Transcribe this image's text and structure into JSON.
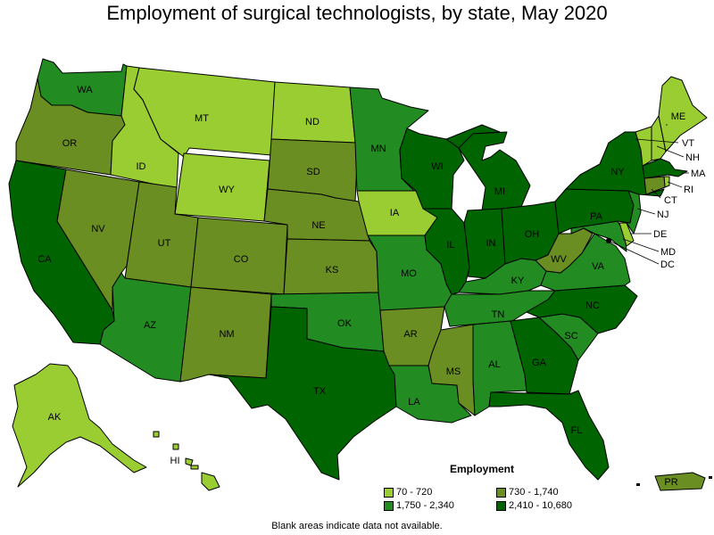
{
  "title": "Employment of surgical technologists, by state, May 2020",
  "legend": {
    "title": "Employment",
    "bins": [
      {
        "label": "70 - 720",
        "color": "#9acd32"
      },
      {
        "label": "730 - 1,740",
        "color": "#6b8e23"
      },
      {
        "label": "1,750 - 2,340",
        "color": "#228b22"
      },
      {
        "label": "2,410 - 10,680",
        "color": "#006400"
      }
    ]
  },
  "note": "Blank areas indicate data not available.",
  "states": {
    "WA": {
      "label": "WA",
      "bin": 2
    },
    "OR": {
      "label": "OR",
      "bin": 1
    },
    "CA": {
      "label": "CA",
      "bin": 3
    },
    "ID": {
      "label": "ID",
      "bin": 0
    },
    "NV": {
      "label": "NV",
      "bin": 1
    },
    "MT": {
      "label": "MT",
      "bin": 0
    },
    "WY": {
      "label": "WY",
      "bin": 0
    },
    "UT": {
      "label": "UT",
      "bin": 1
    },
    "AZ": {
      "label": "AZ",
      "bin": 2
    },
    "CO": {
      "label": "CO",
      "bin": 1
    },
    "NM": {
      "label": "NM",
      "bin": 1
    },
    "ND": {
      "label": "ND",
      "bin": 0
    },
    "SD": {
      "label": "SD",
      "bin": 1
    },
    "NE": {
      "label": "NE",
      "bin": 1
    },
    "KS": {
      "label": "KS",
      "bin": 1
    },
    "OK": {
      "label": "OK",
      "bin": 2
    },
    "TX": {
      "label": "TX",
      "bin": 3
    },
    "MN": {
      "label": "MN",
      "bin": 2
    },
    "IA": {
      "label": "IA",
      "bin": 0
    },
    "MO": {
      "label": "MO",
      "bin": 2
    },
    "AR": {
      "label": "AR",
      "bin": 1
    },
    "LA": {
      "label": "LA",
      "bin": 2
    },
    "WI": {
      "label": "WI",
      "bin": 3
    },
    "IL": {
      "label": "IL",
      "bin": 3
    },
    "MI": {
      "label": "MI",
      "bin": 3
    },
    "IN": {
      "label": "IN",
      "bin": 3
    },
    "OH": {
      "label": "OH",
      "bin": 3
    },
    "KY": {
      "label": "KY",
      "bin": 2
    },
    "TN": {
      "label": "TN",
      "bin": 2
    },
    "MS": {
      "label": "MS",
      "bin": 1
    },
    "AL": {
      "label": "AL",
      "bin": 2
    },
    "GA": {
      "label": "GA",
      "bin": 3
    },
    "FL": {
      "label": "FL",
      "bin": 3
    },
    "SC": {
      "label": "SC",
      "bin": 2
    },
    "NC": {
      "label": "NC",
      "bin": 3
    },
    "VA": {
      "label": "VA",
      "bin": 2
    },
    "WV": {
      "label": "WV",
      "bin": 1
    },
    "PA": {
      "label": "PA",
      "bin": 3
    },
    "NY": {
      "label": "NY",
      "bin": 3
    },
    "ME": {
      "label": "ME",
      "bin": 0
    },
    "NH": {
      "label": "NH",
      "bin": 0
    },
    "VT": {
      "label": "VT",
      "bin": 0
    },
    "MA": {
      "label": "MA",
      "bin": 3
    },
    "RI": {
      "label": "RI",
      "bin": 0
    },
    "CT": {
      "label": "CT",
      "bin": 1
    },
    "NJ": {
      "label": "NJ",
      "bin": 2
    },
    "DE": {
      "label": "DE",
      "bin": 0
    },
    "MD": {
      "label": "MD",
      "bin": 2
    },
    "DC": {
      "label": "DC",
      "bin": 0
    },
    "AK": {
      "label": "AK",
      "bin": 0
    },
    "HI": {
      "label": "HI",
      "bin": 0
    },
    "PR": {
      "label": "PR",
      "bin": 1
    }
  }
}
